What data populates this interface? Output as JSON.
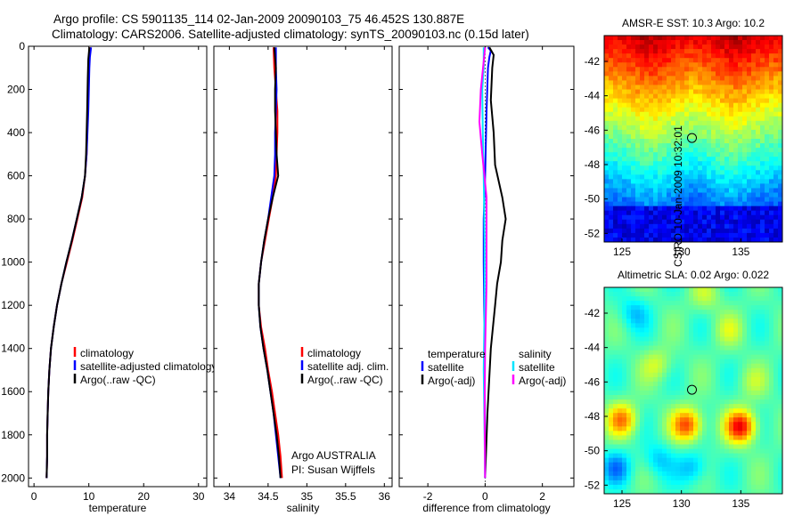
{
  "header": {
    "line1": "Argo profile: CS 5901135_114 02-Jan-2009 20090103_75 46.452S 130.887E",
    "line2": "Climatology: CARS2006. Satellite-adjusted climatology: synTS_20090103.nc (0.15d later)"
  },
  "colors": {
    "climatology": "#ff0000",
    "satellite": "#0000ff",
    "argo": "#000000",
    "argo_salinity_diff": "#ff00ff",
    "satellite_salinity_diff": "#00e5ff"
  },
  "chart_data": [
    {
      "type": "line",
      "name": "temperature-profile",
      "xlabel": "temperature",
      "ylabel": "",
      "xlim": [
        -1,
        31.5
      ],
      "ylim": [
        2040,
        0
      ],
      "xticks": [
        "0",
        "10",
        "20",
        "30"
      ],
      "xtick_values": [
        0,
        10,
        20,
        30
      ],
      "yticks": [
        "0",
        "200",
        "400",
        "600",
        "800",
        "1000",
        "1200",
        "1400",
        "1600",
        "1800",
        "2000"
      ],
      "ytick_values": [
        0,
        200,
        400,
        600,
        800,
        1000,
        1200,
        1400,
        1600,
        1800,
        2000
      ],
      "legend": [
        "climatology",
        "satellite-adjusted climatology",
        "Argo(..raw -QC)"
      ],
      "series": [
        {
          "name": "climatology",
          "points": [
            [
              10.2,
              5
            ],
            [
              10,
              50
            ],
            [
              9.9,
              100
            ],
            [
              9.8,
              300
            ],
            [
              9.6,
              500
            ],
            [
              9.3,
              600
            ],
            [
              8.8,
              700
            ],
            [
              7.9,
              800
            ],
            [
              7,
              900
            ],
            [
              6,
              1000
            ],
            [
              5,
              1100
            ],
            [
              4.2,
              1200
            ],
            [
              3.6,
              1300
            ],
            [
              3.1,
              1400
            ],
            [
              2.8,
              1500
            ],
            [
              2.6,
              1600
            ],
            [
              2.5,
              1700
            ],
            [
              2.4,
              1800
            ],
            [
              2.4,
              1900
            ],
            [
              2.3,
              2000
            ]
          ]
        },
        {
          "name": "satellite",
          "points": [
            [
              10.4,
              5
            ],
            [
              10.2,
              50
            ],
            [
              10.1,
              100
            ],
            [
              9.9,
              300
            ],
            [
              9.6,
              500
            ],
            [
              9.3,
              600
            ],
            [
              8.7,
              700
            ],
            [
              7.8,
              800
            ],
            [
              6.9,
              900
            ],
            [
              5.9,
              1000
            ],
            [
              5,
              1100
            ],
            [
              4.2,
              1200
            ],
            [
              3.6,
              1300
            ],
            [
              3.1,
              1400
            ],
            [
              2.8,
              1500
            ],
            [
              2.6,
              1600
            ],
            [
              2.5,
              1700
            ],
            [
              2.4,
              1800
            ],
            [
              2.4,
              1900
            ],
            [
              2.3,
              2000
            ]
          ]
        },
        {
          "name": "argo",
          "points": [
            [
              10.1,
              5
            ],
            [
              9.9,
              60
            ],
            [
              9.8,
              150
            ],
            [
              9.7,
              300
            ],
            [
              9.5,
              500
            ],
            [
              9.3,
              600
            ],
            [
              8.7,
              700
            ],
            [
              7.8,
              800
            ],
            [
              6.9,
              900
            ],
            [
              5.9,
              1000
            ],
            [
              5,
              1100
            ],
            [
              4.2,
              1200
            ],
            [
              3.6,
              1300
            ],
            [
              3.1,
              1400
            ],
            [
              2.8,
              1500
            ],
            [
              2.6,
              1600
            ],
            [
              2.5,
              1700
            ],
            [
              2.4,
              1800
            ],
            [
              2.4,
              1900
            ],
            [
              2.3,
              2000
            ]
          ]
        }
      ]
    },
    {
      "type": "line",
      "name": "salinity-profile",
      "xlabel": "salinity",
      "ylabel": "",
      "xlim": [
        33.8,
        36.1
      ],
      "ylim": [
        2040,
        0
      ],
      "xticks": [
        "34",
        "34.5",
        "35",
        "35.5",
        "36"
      ],
      "xtick_values": [
        34,
        34.5,
        35,
        35.5,
        36
      ],
      "legend": [
        "climatology",
        "satellite adj. clim.",
        "Argo(..raw -QC)"
      ],
      "annotation": [
        "Argo AUSTRALIA",
        "PI: Susan Wijffels"
      ],
      "series": [
        {
          "name": "climatology",
          "points": [
            [
              34.57,
              5
            ],
            [
              34.58,
              100
            ],
            [
              34.6,
              200
            ],
            [
              34.62,
              300
            ],
            [
              34.62,
              400
            ],
            [
              34.61,
              500
            ],
            [
              34.6,
              600
            ],
            [
              34.56,
              700
            ],
            [
              34.51,
              800
            ],
            [
              34.46,
              900
            ],
            [
              34.41,
              1000
            ],
            [
              34.38,
              1100
            ],
            [
              34.38,
              1200
            ],
            [
              34.41,
              1300
            ],
            [
              34.46,
              1400
            ],
            [
              34.5,
              1500
            ],
            [
              34.55,
              1600
            ],
            [
              34.59,
              1700
            ],
            [
              34.63,
              1800
            ],
            [
              34.66,
              1900
            ],
            [
              34.68,
              2000
            ]
          ]
        },
        {
          "name": "satellite",
          "points": [
            [
              34.6,
              5
            ],
            [
              34.6,
              100
            ],
            [
              34.61,
              200
            ],
            [
              34.6,
              300
            ],
            [
              34.59,
              400
            ],
            [
              34.59,
              500
            ],
            [
              34.58,
              600
            ],
            [
              34.54,
              700
            ],
            [
              34.5,
              800
            ],
            [
              34.45,
              900
            ],
            [
              34.41,
              1000
            ],
            [
              34.38,
              1100
            ],
            [
              34.38,
              1200
            ],
            [
              34.4,
              1300
            ],
            [
              34.44,
              1400
            ],
            [
              34.49,
              1500
            ],
            [
              34.53,
              1600
            ],
            [
              34.57,
              1700
            ],
            [
              34.6,
              1800
            ],
            [
              34.63,
              1900
            ],
            [
              34.66,
              2000
            ]
          ]
        },
        {
          "name": "argo",
          "points": [
            [
              34.58,
              5
            ],
            [
              34.6,
              100
            ],
            [
              34.59,
              200
            ],
            [
              34.59,
              300
            ],
            [
              34.6,
              400
            ],
            [
              34.61,
              500
            ],
            [
              34.63,
              600
            ],
            [
              34.56,
              700
            ],
            [
              34.5,
              800
            ],
            [
              34.45,
              900
            ],
            [
              34.41,
              1000
            ],
            [
              34.38,
              1100
            ],
            [
              34.38,
              1200
            ],
            [
              34.4,
              1300
            ],
            [
              34.44,
              1400
            ],
            [
              34.49,
              1500
            ],
            [
              34.53,
              1600
            ],
            [
              34.57,
              1700
            ],
            [
              34.61,
              1800
            ],
            [
              34.64,
              1900
            ],
            [
              34.66,
              2000
            ]
          ]
        }
      ]
    },
    {
      "type": "line",
      "name": "difference-from-climatology",
      "xlabel": "difference from climatology",
      "ylabel": "",
      "xlim": [
        -3,
        3.1
      ],
      "ylim": [
        2040,
        0
      ],
      "xticks": [
        "-2",
        "0",
        "2"
      ],
      "xtick_values": [
        -2,
        0,
        2
      ],
      "legend_titles": [
        "temperature",
        "salinity"
      ],
      "legend": [
        "satellite",
        "Argo(-adj)",
        "satellite",
        "Argo(-adj)"
      ],
      "series": [
        {
          "name": "temperature-satellite",
          "points": [
            [
              0.1,
              5
            ],
            [
              0.2,
              20
            ],
            [
              0.15,
              50
            ],
            [
              0.1,
              100
            ],
            [
              0.05,
              300
            ],
            [
              0,
              600
            ],
            [
              -0.05,
              800
            ],
            [
              -0.05,
              1000
            ],
            [
              -0.02,
              1400
            ],
            [
              0,
              2000
            ]
          ]
        },
        {
          "name": "temperature-argo",
          "points": [
            [
              0.15,
              5
            ],
            [
              0.3,
              40
            ],
            [
              0.25,
              100
            ],
            [
              0.2,
              250
            ],
            [
              0.3,
              400
            ],
            [
              0.35,
              550
            ],
            [
              0.6,
              700
            ],
            [
              0.72,
              800
            ],
            [
              0.6,
              900
            ],
            [
              0.55,
              1000
            ],
            [
              0.42,
              1100
            ],
            [
              0.35,
              1200
            ],
            [
              0.2,
              1400
            ],
            [
              0.08,
              1700
            ],
            [
              0,
              2000
            ]
          ]
        },
        {
          "name": "salinity-satellite",
          "points": [
            [
              -0.05,
              5
            ],
            [
              -0.05,
              100
            ],
            [
              -0.1,
              200
            ],
            [
              -0.08,
              400
            ],
            [
              -0.05,
              600
            ],
            [
              -0.02,
              900
            ],
            [
              -0.02,
              1200
            ],
            [
              -0.05,
              1500
            ],
            [
              0,
              2000
            ]
          ]
        },
        {
          "name": "salinity-argo",
          "points": [
            [
              0,
              5
            ],
            [
              -0.15,
              200
            ],
            [
              -0.2,
              350
            ],
            [
              -0.1,
              500
            ],
            [
              0.05,
              700
            ],
            [
              0.05,
              900
            ],
            [
              0.05,
              1100
            ],
            [
              0,
              1400
            ],
            [
              -0.02,
              1700
            ],
            [
              0,
              2000
            ]
          ]
        }
      ]
    },
    {
      "type": "heatmap",
      "name": "amsr-e-sst-map",
      "title": "AMSR-E SST: 10.3 Argo: 10.2",
      "xlim": [
        123.5,
        138.5
      ],
      "ylim": [
        -52.5,
        -40.5
      ],
      "xticks": [
        "125",
        "130",
        "135"
      ],
      "xtick_values": [
        125,
        130,
        135
      ],
      "yticks": [
        "-42",
        "-44",
        "-46",
        "-48",
        "-50",
        "-52"
      ],
      "ytick_values": [
        -42,
        -44,
        -46,
        -48,
        -50,
        -52
      ],
      "marker": {
        "lon": 130.887,
        "lat": -46.452
      },
      "colorscale": "jet"
    },
    {
      "type": "heatmap",
      "name": "altimetric-sla-map",
      "title": "Altimetric SLA: 0.02 Argo: 0.022",
      "xlim": [
        123.5,
        138.5
      ],
      "ylim": [
        -52.5,
        -40.5
      ],
      "xticks": [
        "125",
        "130",
        "135"
      ],
      "xtick_values": [
        125,
        130,
        135
      ],
      "yticks": [
        "-42",
        "-44",
        "-46",
        "-48",
        "-50",
        "-52"
      ],
      "ytick_values": [
        -42,
        -44,
        -46,
        -48,
        -50,
        -52
      ],
      "marker": {
        "lon": 130.887,
        "lat": -46.452
      },
      "colorscale": "jet"
    }
  ],
  "credit": "CSIRO 10-Jan-2009 10:32:01"
}
